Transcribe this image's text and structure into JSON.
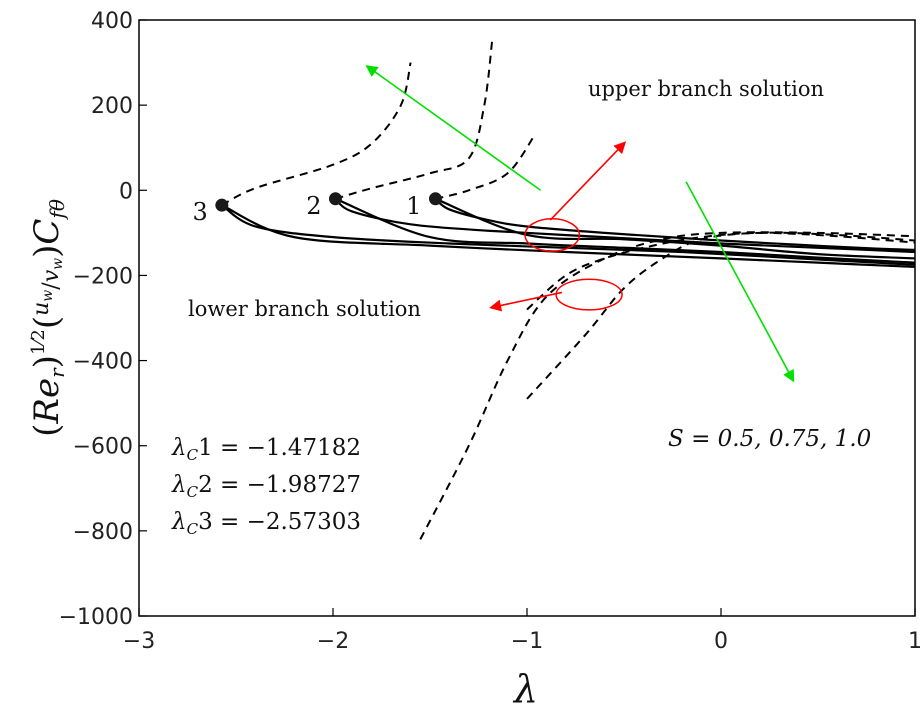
{
  "chart_data": {
    "type": "line",
    "xlabel": "λ",
    "ylabel": "(Re_r)^(1/2)(u_w/v_w)C_fθ",
    "xlim": [
      -3,
      1
    ],
    "ylim": [
      -1000,
      400
    ],
    "xticks": [
      -3,
      -2,
      -1,
      0,
      1
    ],
    "yticks": [
      -1000,
      -800,
      -600,
      -400,
      -200,
      0,
      200,
      400
    ],
    "xtick_labels": [
      "−3",
      "−2",
      "−1",
      "0",
      "1"
    ],
    "ytick_labels": [
      "−1000",
      "−800",
      "−600",
      "−400",
      "−200",
      "0",
      "200",
      "400"
    ],
    "grid": false,
    "series": [
      {
        "name": "1",
        "critical_point": [
          -1.47182,
          -20
        ],
        "upper": [
          [
            -1.47182,
            -20
          ],
          [
            -1.4,
            -45
          ],
          [
            -1.2,
            -70
          ],
          [
            -1.0,
            -85
          ],
          [
            -0.6,
            -100
          ],
          [
            -0.2,
            -112
          ],
          [
            0,
            -118
          ],
          [
            0.4,
            -128
          ],
          [
            0.8,
            -137
          ],
          [
            1.0,
            -140
          ]
        ],
        "upper_dashed": [
          [
            -1.47182,
            -20
          ],
          [
            -1.3,
            0
          ],
          [
            -1.1,
            40
          ],
          [
            -0.96,
            130
          ]
        ],
        "lower": [
          [
            -1.47182,
            -20
          ],
          [
            -1.0,
            -105
          ],
          [
            -0.5,
            -115
          ],
          [
            0,
            -130
          ],
          [
            0.5,
            -150
          ],
          [
            1.0,
            -160
          ]
        ],
        "lower_dashed": [
          [
            -1.0,
            -490
          ],
          [
            -0.7,
            -340
          ],
          [
            -0.5,
            -230
          ],
          [
            -0.3,
            -160
          ],
          [
            -0.1,
            -115
          ],
          [
            0.2,
            -100
          ],
          [
            0.6,
            -105
          ],
          [
            1.0,
            -118
          ]
        ]
      },
      {
        "name": "2",
        "critical_point": [
          -1.98727,
          -20
        ],
        "upper": [
          [
            -1.98727,
            -20
          ],
          [
            -1.9,
            -50
          ],
          [
            -1.6,
            -80
          ],
          [
            -1.2,
            -95
          ],
          [
            -0.6,
            -110
          ],
          [
            0,
            -125
          ],
          [
            0.5,
            -135
          ],
          [
            1.0,
            -145
          ]
        ],
        "upper_dashed": [
          [
            -1.98727,
            -20
          ],
          [
            -1.8,
            5
          ],
          [
            -1.5,
            40
          ],
          [
            -1.3,
            75
          ],
          [
            -1.22,
            200
          ],
          [
            -1.18,
            350
          ]
        ],
        "lower": [
          [
            -1.98727,
            -20
          ],
          [
            -1.5,
            -110
          ],
          [
            -1.0,
            -125
          ],
          [
            -0.5,
            -135
          ],
          [
            0,
            -145
          ],
          [
            0.5,
            -158
          ],
          [
            1.0,
            -170
          ]
        ],
        "lower_dashed": [
          [
            -1.0,
            -280
          ],
          [
            -0.8,
            -200
          ],
          [
            -0.6,
            -160
          ],
          [
            -0.35,
            -130
          ],
          [
            -0.1,
            -110
          ],
          [
            0.2,
            -100
          ],
          [
            0.6,
            -108
          ],
          [
            1.0,
            -123
          ]
        ]
      },
      {
        "name": "3",
        "critical_point": [
          -2.57303,
          -35
        ],
        "upper": [
          [
            -2.57303,
            -35
          ],
          [
            -2.4,
            -85
          ],
          [
            -2.0,
            -110
          ],
          [
            -1.4,
            -125
          ],
          [
            -0.8,
            -135
          ],
          [
            -0.2,
            -145
          ],
          [
            0.4,
            -160
          ],
          [
            1.0,
            -175
          ]
        ],
        "upper_dashed": [
          [
            -2.57303,
            -35
          ],
          [
            -2.4,
            5
          ],
          [
            -2.0,
            60
          ],
          [
            -1.8,
            110
          ],
          [
            -1.65,
            200
          ],
          [
            -1.6,
            300
          ]
        ],
        "lower": [
          [
            -2.57303,
            -35
          ],
          [
            -2.2,
            -110
          ],
          [
            -1.5,
            -130
          ],
          [
            -0.8,
            -145
          ],
          [
            0,
            -160
          ],
          [
            0.5,
            -170
          ],
          [
            1.0,
            -180
          ]
        ],
        "lower_dashed": [
          [
            -1.55,
            -820
          ],
          [
            -1.3,
            -600
          ],
          [
            -1.1,
            -400
          ],
          [
            -0.9,
            -250
          ],
          [
            -0.6,
            -160
          ],
          [
            -0.3,
            -115
          ],
          [
            0,
            -100
          ],
          [
            0.5,
            -100
          ],
          [
            1.0,
            -108
          ]
        ]
      }
    ],
    "annotations": {
      "upper_branch": "upper branch solution",
      "lower_branch": "lower branch solution",
      "s_values": "S = 0.5, 0.75, 1.0",
      "critical_values": [
        {
          "label": "λ",
          "sub": "C",
          "suffix": "1 = −1.47182"
        },
        {
          "label": "λ",
          "sub": "C",
          "suffix": "2 = −1.98727"
        },
        {
          "label": "λ",
          "sub": "C",
          "suffix": "3 = −2.57303"
        }
      ]
    },
    "arrows": [
      {
        "color": "#00e000",
        "from": [
          -0.93,
          0
        ],
        "to": [
          -1.82,
          290
        ]
      },
      {
        "color": "#00e000",
        "from": [
          -0.18,
          20
        ],
        "to": [
          0.37,
          -445
        ]
      },
      {
        "color": "#ff0000",
        "from": [
          -0.88,
          -70
        ],
        "to": [
          -0.5,
          110
        ]
      },
      {
        "color": "#ff0000",
        "from": [
          -0.82,
          -240
        ],
        "to": [
          -1.18,
          -275
        ]
      }
    ],
    "ellipses": [
      {
        "color": "#ff0000",
        "center": [
          -0.87,
          -105
        ],
        "rx": 0.14,
        "ry": 38
      },
      {
        "color": "#ff0000",
        "center": [
          -0.68,
          -245
        ],
        "rx": 0.17,
        "ry": 36
      }
    ],
    "colors": {
      "line": "#000000",
      "point": "#1a1a1a",
      "green_arrow": "#00e000",
      "red_arrow": "#ff0000"
    }
  }
}
